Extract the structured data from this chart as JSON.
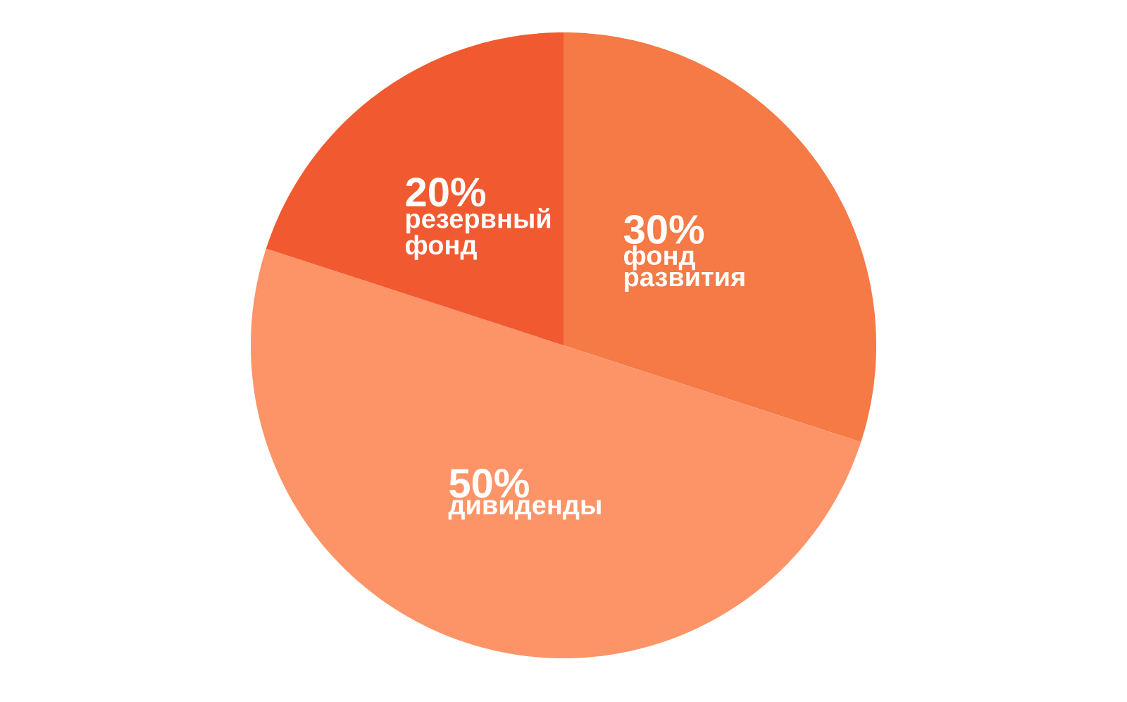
{
  "chart_data": {
    "type": "pie",
    "categories": [
      "фонд развития",
      "дивиденды",
      "резервный фонд"
    ],
    "values": [
      30,
      50,
      20
    ],
    "value_labels": [
      "30%",
      "50%",
      "20%"
    ],
    "colors": [
      "#f57a45",
      "#fd9467",
      "#f15a31"
    ]
  }
}
